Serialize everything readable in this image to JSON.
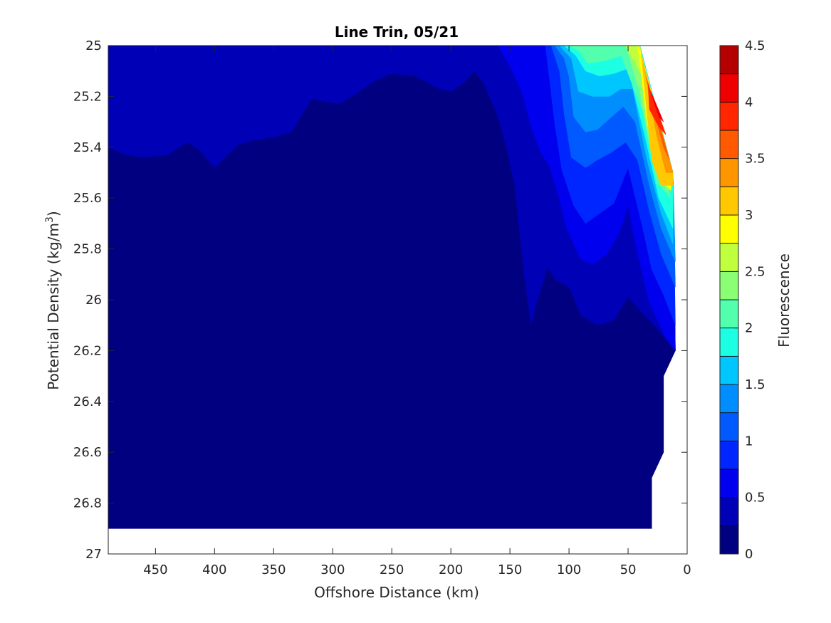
{
  "chart_data": {
    "type": "contour",
    "title": "Line Trin, 05/21",
    "xlabel": "Offshore Distance (km)",
    "ylabel_main": "Potential Density (kg/m",
    "ylabel_sup": "3",
    "ylabel_close": ")",
    "xlim": [
      490,
      0
    ],
    "x_reversed": true,
    "ylim": [
      25,
      27
    ],
    "y_reversed": true,
    "xticks": [
      450,
      400,
      350,
      300,
      250,
      200,
      150,
      100,
      50,
      0
    ],
    "xtick_labels": [
      "450",
      "400",
      "350",
      "300",
      "250",
      "200",
      "150",
      "100",
      "50",
      "0"
    ],
    "yticks": [
      25,
      25.2,
      25.4,
      25.6,
      25.8,
      26,
      26.2,
      26.4,
      26.6,
      26.8,
      27
    ],
    "ytick_labels": [
      "25",
      "25.2",
      "25.4",
      "25.6",
      "25.8",
      "26",
      "26.2",
      "26.4",
      "26.6",
      "26.8",
      "27"
    ],
    "grid": false,
    "colormap": "jet",
    "colorbar": {
      "label": "Fluorescence",
      "range": [
        0,
        4.5
      ],
      "step": 0.25,
      "ticks": [
        0,
        0.5,
        1,
        1.5,
        2,
        2.5,
        3,
        3.5,
        4,
        4.5
      ],
      "tick_labels": [
        "0",
        "0.5",
        "1",
        "1.5",
        "2",
        "2.5",
        "3",
        "3.5",
        "4",
        "4.5"
      ],
      "level_colors": [
        "#000080",
        "#0000B6",
        "#0000EE",
        "#0026FF",
        "#005AFF",
        "#008EFF",
        "#00C6FF",
        "#1CFFE2",
        "#52FFAC",
        "#8AFF74",
        "#C0FF3E",
        "#FFFF00",
        "#FFC800",
        "#FF9600",
        "#FF5A00",
        "#FF2600",
        "#EE0000",
        "#B40000"
      ]
    },
    "regions": [
      {
        "level": 0,
        "color": "#000080",
        "points": [
          [
            490,
            25
          ],
          [
            40,
            25
          ],
          [
            12,
            25.5
          ],
          [
            10,
            26.2
          ],
          [
            20,
            26.3
          ],
          [
            20,
            26.6
          ],
          [
            30,
            26.7
          ],
          [
            30,
            26.9
          ],
          [
            490,
            26.9
          ]
        ]
      },
      {
        "level": 1,
        "color": "#0000B6",
        "points": [
          [
            490,
            25
          ],
          [
            40,
            25
          ],
          [
            12,
            25.5
          ],
          [
            10,
            26.2
          ],
          [
            28,
            26.1
          ],
          [
            50,
            25.99
          ],
          [
            62,
            26.08
          ],
          [
            76,
            26.1
          ],
          [
            90,
            26.06
          ],
          [
            100,
            25.95
          ],
          [
            112,
            25.92
          ],
          [
            118,
            25.87
          ],
          [
            128,
            26.02
          ],
          [
            132,
            26.1
          ],
          [
            138,
            25.9
          ],
          [
            146,
            25.55
          ],
          [
            153,
            25.4
          ],
          [
            160,
            25.28
          ],
          [
            172,
            25.15
          ],
          [
            180,
            25.1
          ],
          [
            190,
            25.15
          ],
          [
            200,
            25.18
          ],
          [
            210,
            25.17
          ],
          [
            230,
            25.12
          ],
          [
            250,
            25.11
          ],
          [
            265,
            25.14
          ],
          [
            280,
            25.19
          ],
          [
            295,
            25.23
          ],
          [
            318,
            25.21
          ],
          [
            335,
            25.34
          ],
          [
            350,
            25.36
          ],
          [
            365,
            25.37
          ],
          [
            380,
            25.39
          ],
          [
            400,
            25.48
          ],
          [
            413,
            25.41
          ],
          [
            423,
            25.38
          ],
          [
            440,
            25.43
          ],
          [
            460,
            25.44
          ],
          [
            475,
            25.43
          ],
          [
            490,
            25.4
          ]
        ]
      },
      {
        "level": 2,
        "color": "#0000EE",
        "points": [
          [
            160,
            25
          ],
          [
            40,
            25
          ],
          [
            12,
            25.5
          ],
          [
            10,
            26.2
          ],
          [
            18,
            26.15
          ],
          [
            32,
            26.01
          ],
          [
            42,
            25.82
          ],
          [
            50,
            25.63
          ],
          [
            58,
            25.74
          ],
          [
            68,
            25.82
          ],
          [
            80,
            25.86
          ],
          [
            90,
            25.84
          ],
          [
            102,
            25.72
          ],
          [
            110,
            25.57
          ],
          [
            117,
            25.47
          ],
          [
            124,
            25.42
          ],
          [
            132,
            25.32
          ],
          [
            140,
            25.18
          ],
          [
            150,
            25.08
          ]
        ]
      },
      {
        "level": 3,
        "color": "#0026FF",
        "points": [
          [
            120,
            25
          ],
          [
            40,
            25
          ],
          [
            12,
            25.5
          ],
          [
            10,
            26.1
          ],
          [
            20,
            25.98
          ],
          [
            30,
            25.88
          ],
          [
            38,
            25.71
          ],
          [
            50,
            25.48
          ],
          [
            62,
            25.62
          ],
          [
            74,
            25.66
          ],
          [
            86,
            25.7
          ],
          [
            96,
            25.63
          ],
          [
            106,
            25.49
          ],
          [
            112,
            25.31
          ],
          [
            116,
            25.15
          ]
        ]
      },
      {
        "level": 4,
        "color": "#005AFF",
        "points": [
          [
            115,
            25
          ],
          [
            40,
            25
          ],
          [
            12,
            25.5
          ],
          [
            10,
            25.95
          ],
          [
            22,
            25.82
          ],
          [
            32,
            25.65
          ],
          [
            42,
            25.45
          ],
          [
            52,
            25.38
          ],
          [
            64,
            25.42
          ],
          [
            76,
            25.45
          ],
          [
            86,
            25.48
          ],
          [
            98,
            25.44
          ],
          [
            104,
            25.27
          ],
          [
            108,
            25.1
          ]
        ]
      },
      {
        "level": 5,
        "color": "#008EFF",
        "points": [
          [
            112,
            25
          ],
          [
            40,
            25
          ],
          [
            12,
            25.5
          ],
          [
            10,
            25.85
          ],
          [
            22,
            25.72
          ],
          [
            32,
            25.55
          ],
          [
            44,
            25.3
          ],
          [
            54,
            25.24
          ],
          [
            64,
            25.28
          ],
          [
            76,
            25.33
          ],
          [
            86,
            25.34
          ],
          [
            96,
            25.28
          ],
          [
            100,
            25.12
          ],
          [
            104,
            25.05
          ]
        ]
      },
      {
        "level": 6,
        "color": "#00C6FF",
        "points": [
          [
            108,
            25
          ],
          [
            40,
            25
          ],
          [
            12,
            25.5
          ],
          [
            12,
            25.78
          ],
          [
            22,
            25.66
          ],
          [
            34,
            25.45
          ],
          [
            46,
            25.17
          ],
          [
            56,
            25.17
          ],
          [
            66,
            25.2
          ],
          [
            80,
            25.2
          ],
          [
            92,
            25.18
          ],
          [
            98,
            25.05
          ]
        ]
      },
      {
        "level": 7,
        "color": "#1CFFE2",
        "points": [
          [
            104,
            25
          ],
          [
            40,
            25
          ],
          [
            12,
            25.5
          ],
          [
            12,
            25.72
          ],
          [
            24,
            25.6
          ],
          [
            36,
            25.35
          ],
          [
            50,
            25.09
          ],
          [
            62,
            25.11
          ],
          [
            74,
            25.12
          ],
          [
            86,
            25.1
          ],
          [
            94,
            25.04
          ]
        ]
      },
      {
        "level": 8,
        "color": "#52FFAC",
        "points": [
          [
            100,
            25
          ],
          [
            40,
            25
          ],
          [
            14,
            25.6
          ],
          [
            26,
            25.54
          ],
          [
            38,
            25.25
          ],
          [
            56,
            25.04
          ],
          [
            70,
            25.06
          ],
          [
            84,
            25.07
          ],
          [
            92,
            25.02
          ]
        ]
      },
      {
        "level": 9,
        "color": "#8AFF74",
        "points": [
          [
            96,
            25
          ],
          [
            40,
            25
          ],
          [
            16,
            25.58
          ],
          [
            28,
            25.48
          ],
          [
            40,
            25.18
          ],
          [
            52,
            25.0
          ]
        ]
      },
      {
        "level": 10,
        "color": "#C0FF3E",
        "points": [
          [
            52,
            25
          ],
          [
            40,
            25
          ],
          [
            18,
            25.55
          ],
          [
            30,
            25.42
          ],
          [
            38,
            25.12
          ]
        ]
      },
      {
        "level": 11,
        "color": "#FFFF00",
        "points": [
          [
            42,
            25
          ],
          [
            39,
            25.03
          ],
          [
            12,
            25.5
          ],
          [
            14,
            25.57
          ],
          [
            24,
            25.52
          ],
          [
            34,
            25.3
          ]
        ]
      },
      {
        "level": 12,
        "color": "#FFC800",
        "points": [
          [
            39,
            25.03
          ],
          [
            37,
            25.07
          ],
          [
            12,
            25.5
          ],
          [
            12,
            25.55
          ],
          [
            22,
            25.55
          ],
          [
            30,
            25.45
          ]
        ]
      },
      {
        "level": 13,
        "color": "#FF9600",
        "points": [
          [
            37,
            25.07
          ],
          [
            35,
            25.12
          ],
          [
            12,
            25.5
          ],
          [
            18,
            25.5
          ],
          [
            26,
            25.35
          ]
        ]
      },
      {
        "level": 14,
        "color": "#FF5A00",
        "points": [
          [
            35,
            25.12
          ],
          [
            33,
            25.15
          ],
          [
            15,
            25.45
          ],
          [
            20,
            25.4
          ],
          [
            30,
            25.22
          ]
        ]
      },
      {
        "level": 15,
        "color": "#FF2600",
        "points": [
          [
            33,
            25.15
          ],
          [
            31,
            25.18
          ],
          [
            18,
            25.35
          ],
          [
            24,
            25.32
          ],
          [
            32,
            25.25
          ]
        ]
      },
      {
        "level": 16,
        "color": "#EE0000",
        "points": [
          [
            31,
            25.18
          ],
          [
            29,
            25.2
          ],
          [
            20,
            25.3
          ],
          [
            24,
            25.28
          ]
        ]
      }
    ]
  }
}
